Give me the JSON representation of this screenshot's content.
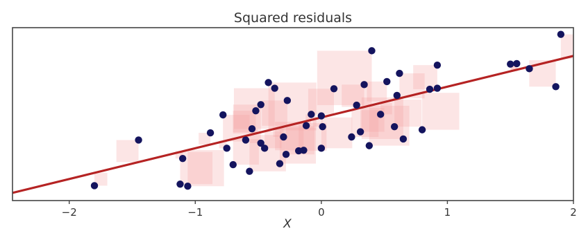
{
  "chart_data": {
    "type": "scatter",
    "title": "Squared residuals",
    "xlabel": "X",
    "ylabel": "",
    "xlim": [
      -2.45,
      2.0
    ],
    "ylim": [
      -1.62,
      1.75
    ],
    "xticks": [
      -2,
      -1,
      0,
      1,
      2
    ],
    "xtick_labels": [
      "−2",
      "−1",
      "0",
      "1",
      "2"
    ],
    "grid": false,
    "legend": "none",
    "colors": {
      "points": "#14145e",
      "fit_line": "#b52323",
      "residual_squares": "#f4a0a0",
      "frame": "#444444"
    },
    "fit_line": {
      "slope": 0.6,
      "intercept": 0.0
    },
    "points": [
      {
        "x": -1.8,
        "y": -1.33
      },
      {
        "x": -1.45,
        "y": -0.44
      },
      {
        "x": -1.12,
        "y": -1.3
      },
      {
        "x": -1.1,
        "y": -0.8
      },
      {
        "x": -1.06,
        "y": -1.34
      },
      {
        "x": -0.88,
        "y": -0.3
      },
      {
        "x": -0.78,
        "y": 0.05
      },
      {
        "x": -0.75,
        "y": -0.6
      },
      {
        "x": -0.7,
        "y": -0.92
      },
      {
        "x": -0.6,
        "y": -0.44
      },
      {
        "x": -0.57,
        "y": -1.05
      },
      {
        "x": -0.52,
        "y": 0.13
      },
      {
        "x": -0.55,
        "y": -0.22
      },
      {
        "x": -0.48,
        "y": -0.5
      },
      {
        "x": -0.45,
        "y": -0.6
      },
      {
        "x": -0.48,
        "y": 0.25
      },
      {
        "x": -0.42,
        "y": 0.68
      },
      {
        "x": -0.37,
        "y": 0.57
      },
      {
        "x": -0.33,
        "y": -0.9
      },
      {
        "x": -0.3,
        "y": -0.38
      },
      {
        "x": -0.28,
        "y": -0.72
      },
      {
        "x": -0.27,
        "y": 0.33
      },
      {
        "x": -0.18,
        "y": -0.65
      },
      {
        "x": -0.14,
        "y": -0.64
      },
      {
        "x": -0.12,
        "y": -0.16
      },
      {
        "x": -0.08,
        "y": 0.06
      },
      {
        "x": 0.0,
        "y": -0.6
      },
      {
        "x": 0.01,
        "y": -0.18
      },
      {
        "x": 0.0,
        "y": 0.03
      },
      {
        "x": 0.1,
        "y": 0.56
      },
      {
        "x": 0.24,
        "y": -0.38
      },
      {
        "x": 0.28,
        "y": 0.24
      },
      {
        "x": 0.31,
        "y": -0.28
      },
      {
        "x": 0.34,
        "y": 0.64
      },
      {
        "x": 0.38,
        "y": -0.55
      },
      {
        "x": 0.4,
        "y": 1.3
      },
      {
        "x": 0.47,
        "y": 0.06
      },
      {
        "x": 0.52,
        "y": 0.7
      },
      {
        "x": 0.58,
        "y": -0.18
      },
      {
        "x": 0.6,
        "y": 0.43
      },
      {
        "x": 0.62,
        "y": 0.86
      },
      {
        "x": 0.65,
        "y": -0.42
      },
      {
        "x": 0.8,
        "y": -0.24
      },
      {
        "x": 0.86,
        "y": 0.55
      },
      {
        "x": 0.92,
        "y": 0.57
      },
      {
        "x": 0.92,
        "y": 1.02
      },
      {
        "x": 1.5,
        "y": 1.04
      },
      {
        "x": 1.55,
        "y": 1.05
      },
      {
        "x": 1.65,
        "y": 0.95
      },
      {
        "x": 1.86,
        "y": 0.6
      },
      {
        "x": 1.9,
        "y": 1.62
      }
    ]
  }
}
